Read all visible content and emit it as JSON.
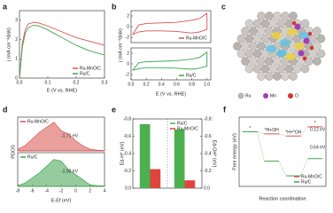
{
  "panel_labels": [
    "a",
    "b",
    "c",
    "d",
    "e",
    "f"
  ],
  "panel_c": {
    "legend": [
      "Ru",
      "Mn",
      "O"
    ]
  },
  "chart_data": [
    {
      "type": "line",
      "x": [
        0,
        0.01,
        0.02,
        0.03,
        0.05,
        0.07,
        0.1,
        0.15,
        0.2,
        0.25,
        0.3
      ],
      "series": [
        {
          "name": "Ru-MnO/C",
          "color": "#d9534f",
          "values": [
            0,
            1.8,
            2.5,
            2.8,
            2.9,
            2.85,
            2.7,
            2.4,
            2.1,
            1.9,
            1.7
          ]
        },
        {
          "name": "Ru/C",
          "color": "#3fa34d",
          "values": [
            0,
            1.6,
            2.3,
            2.6,
            2.75,
            2.7,
            2.5,
            2.1,
            1.7,
            1.4,
            1.2
          ]
        }
      ],
      "xlim": [
        0,
        0.3
      ],
      "xticks": [
        {
          "value": 0,
          "label": "0.0"
        },
        {
          "value": 0.1,
          "label": "0.1"
        },
        {
          "value": 0.2,
          "label": "0.2"
        },
        {
          "value": 0.3,
          "label": "0.3"
        }
      ],
      "ylim": [
        0,
        3.5
      ],
      "yticks": [
        0,
        1,
        2,
        3
      ],
      "xlabel": "E (V vs. RHE)",
      "ylabel": "j (mA cm⁻²disk)",
      "legend": "lower right"
    },
    {
      "type": "line",
      "x": [
        0.02,
        0.1,
        0.2,
        0.4,
        0.6,
        0.8,
        0.9,
        1.0,
        1.0,
        0.9,
        0.8,
        0.6,
        0.4,
        0.2,
        0.1,
        0.02
      ],
      "series": [
        {
          "name": "Ru-MnO/C",
          "color": "#d9534f",
          "values": [
            -1.5,
            0.3,
            0.6,
            0.7,
            0.8,
            1.2,
            1.5,
            2.5,
            -0.5,
            -1.0,
            -1.2,
            -0.9,
            -0.8,
            -0.8,
            -1.0,
            -1.5
          ]
        }
      ],
      "xlim": [
        0,
        1.05
      ],
      "ylim": [
        -3,
        3
      ],
      "yticks": [
        -2,
        0,
        2
      ],
      "ylabel": "j (mA cm⁻²disk)",
      "legend": "lower right"
    },
    {
      "type": "line",
      "x": [
        0.02,
        0.1,
        0.2,
        0.4,
        0.6,
        0.8,
        0.9,
        1.0,
        1.0,
        0.9,
        0.8,
        0.6,
        0.4,
        0.2,
        0.1,
        0.02
      ],
      "series": [
        {
          "name": "Ru/C",
          "color": "#3fa34d",
          "values": [
            -1.2,
            0.2,
            0.4,
            0.5,
            0.6,
            0.9,
            1.2,
            2.2,
            -0.4,
            -0.8,
            -1.0,
            -0.8,
            -0.7,
            -0.7,
            -0.9,
            -1.2
          ]
        }
      ],
      "xlim": [
        0,
        1.05
      ],
      "xticks": [
        {
          "value": 0,
          "label": "0.0"
        },
        {
          "value": 0.2,
          "label": "0.2"
        },
        {
          "value": 0.4,
          "label": "0.4"
        },
        {
          "value": 0.6,
          "label": "0.6"
        },
        {
          "value": 0.8,
          "label": "0.8"
        },
        {
          "value": 1.0,
          "label": "1.0"
        }
      ],
      "ylim": [
        -3,
        3
      ],
      "yticks": [
        -2,
        0,
        2
      ],
      "xlabel": "E (V vs. RHE)",
      "legend": "lower right"
    },
    {
      "type": "area",
      "x": [
        -8,
        -7,
        -6,
        -5,
        -4,
        -3,
        -2,
        -1,
        0,
        1,
        2,
        3,
        4
      ],
      "series": [
        {
          "name": "Ru-MnO/C",
          "color": "#d9534f",
          "values": [
            0.05,
            0.15,
            0.35,
            0.55,
            0.7,
            0.85,
            0.6,
            0.5,
            0.3,
            0.15,
            0.05,
            0.02,
            0.01
          ]
        }
      ],
      "xlim": [
        -8,
        4
      ],
      "ylim": [
        0,
        1
      ],
      "ylabel": "PDOS",
      "legend": "upper left",
      "annotations": [
        "-1.71 eV"
      ]
    },
    {
      "type": "area",
      "x": [
        -8,
        -7,
        -6,
        -5,
        -4,
        -3,
        -2,
        -1,
        0,
        1,
        2,
        3,
        4
      ],
      "series": [
        {
          "name": "Ru/C",
          "color": "#3fa34d",
          "values": [
            0.02,
            0.1,
            0.25,
            0.4,
            0.6,
            0.8,
            0.75,
            0.5,
            0.35,
            0.2,
            0.05,
            0.02,
            0.01
          ]
        }
      ],
      "xlim": [
        -8,
        4
      ],
      "xticks": [
        -8,
        -6,
        -4,
        -2,
        0,
        2,
        4
      ],
      "ylim": [
        0,
        1
      ],
      "xlabel": "E-Ef (eV)",
      "legend": "upper left",
      "annotations": [
        "-1.92 eV"
      ]
    },
    {
      "type": "bar",
      "categories": [
        null,
        null
      ],
      "series": [
        {
          "name": "Ru/C",
          "color": "#4caf50",
          "values": [
            -0.74,
            -0.68
          ]
        },
        {
          "name": "Ru-MnO/C",
          "color": "#e0443e",
          "values": [
            -0.22,
            -0.09
          ]
        }
      ],
      "ylim": [
        0,
        -0.8
      ],
      "yticks": [
        {
          "value": 0,
          "label": "0.0"
        },
        {
          "value": -0.2,
          "label": "-0.2"
        },
        {
          "value": -0.4,
          "label": "-0.4"
        },
        {
          "value": -0.6,
          "label": "-0.6"
        },
        {
          "value": -0.8,
          "label": "-0.8"
        }
      ],
      "y2lim": [
        0,
        -0.8
      ],
      "y2ticks": [
        {
          "value": 0,
          "label": "0.0"
        },
        {
          "value": -0.2,
          "label": "-0.2"
        },
        {
          "value": -0.4,
          "label": "-0.4"
        },
        {
          "value": -0.6,
          "label": "-0.6"
        },
        {
          "value": -0.8,
          "label": "-0.8"
        }
      ],
      "ylabel": "Ed-H* (eV)",
      "y2label": "Ed-OH* (eV)",
      "legend": "upper right"
    },
    {
      "type": "step",
      "categories": [
        "*",
        "*H+OH",
        "*H+*OH",
        "*"
      ],
      "series": [
        {
          "name": "Ru-MnO/C",
          "color": "#d9534f",
          "values": [
            0,
            -0.05,
            -0.1,
            0.12
          ]
        },
        {
          "name": "Ru/C",
          "color": "#3fa34d",
          "values": [
            0,
            -0.7,
            -1.05,
            -0.64
          ]
        }
      ],
      "ylim": [
        -1.3,
        0.35
      ],
      "xlabel": "Reaction coordination",
      "ylabel": "Free energy (eV)",
      "legend": "lower right",
      "annotations": [
        "0.12 eV",
        "0.64 eV"
      ]
    }
  ]
}
